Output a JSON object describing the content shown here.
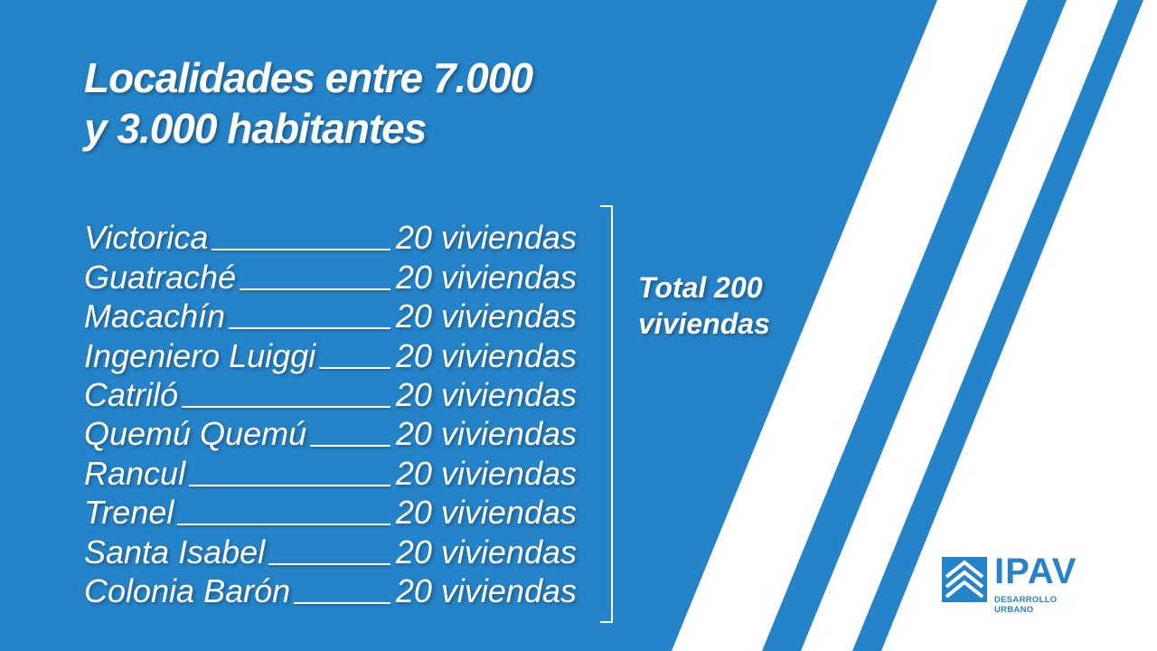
{
  "title": {
    "line1": "Localidades entre 7.000",
    "line2": "y 3.000 habitantes"
  },
  "items": [
    {
      "name": "Victorica",
      "qty": "20 viviendas"
    },
    {
      "name": "Guatraché",
      "qty": "20 viviendas"
    },
    {
      "name": "Macachín",
      "qty": "20 viviendas"
    },
    {
      "name": "Ingeniero Luiggi",
      "qty": "20 viviendas"
    },
    {
      "name": "Catriló",
      "qty": "20 viviendas"
    },
    {
      "name": "Quemú Quemú",
      "qty": "20 viviendas"
    },
    {
      "name": "Rancul",
      "qty": "20 viviendas"
    },
    {
      "name": "Trenel",
      "qty": "20 viviendas"
    },
    {
      "name": "Santa Isabel",
      "qty": "20 viviendas"
    },
    {
      "name": "Colonia Barón",
      "qty": "20 viviendas"
    }
  ],
  "total": {
    "line1": "Total 200",
    "line2": "viviendas"
  },
  "logo": {
    "name": "IPAV",
    "subtitle": "DESARROLLO URBANO"
  },
  "colors": {
    "background": "#2584c9",
    "stripe": "#ffffff",
    "text": "#ffffff"
  }
}
